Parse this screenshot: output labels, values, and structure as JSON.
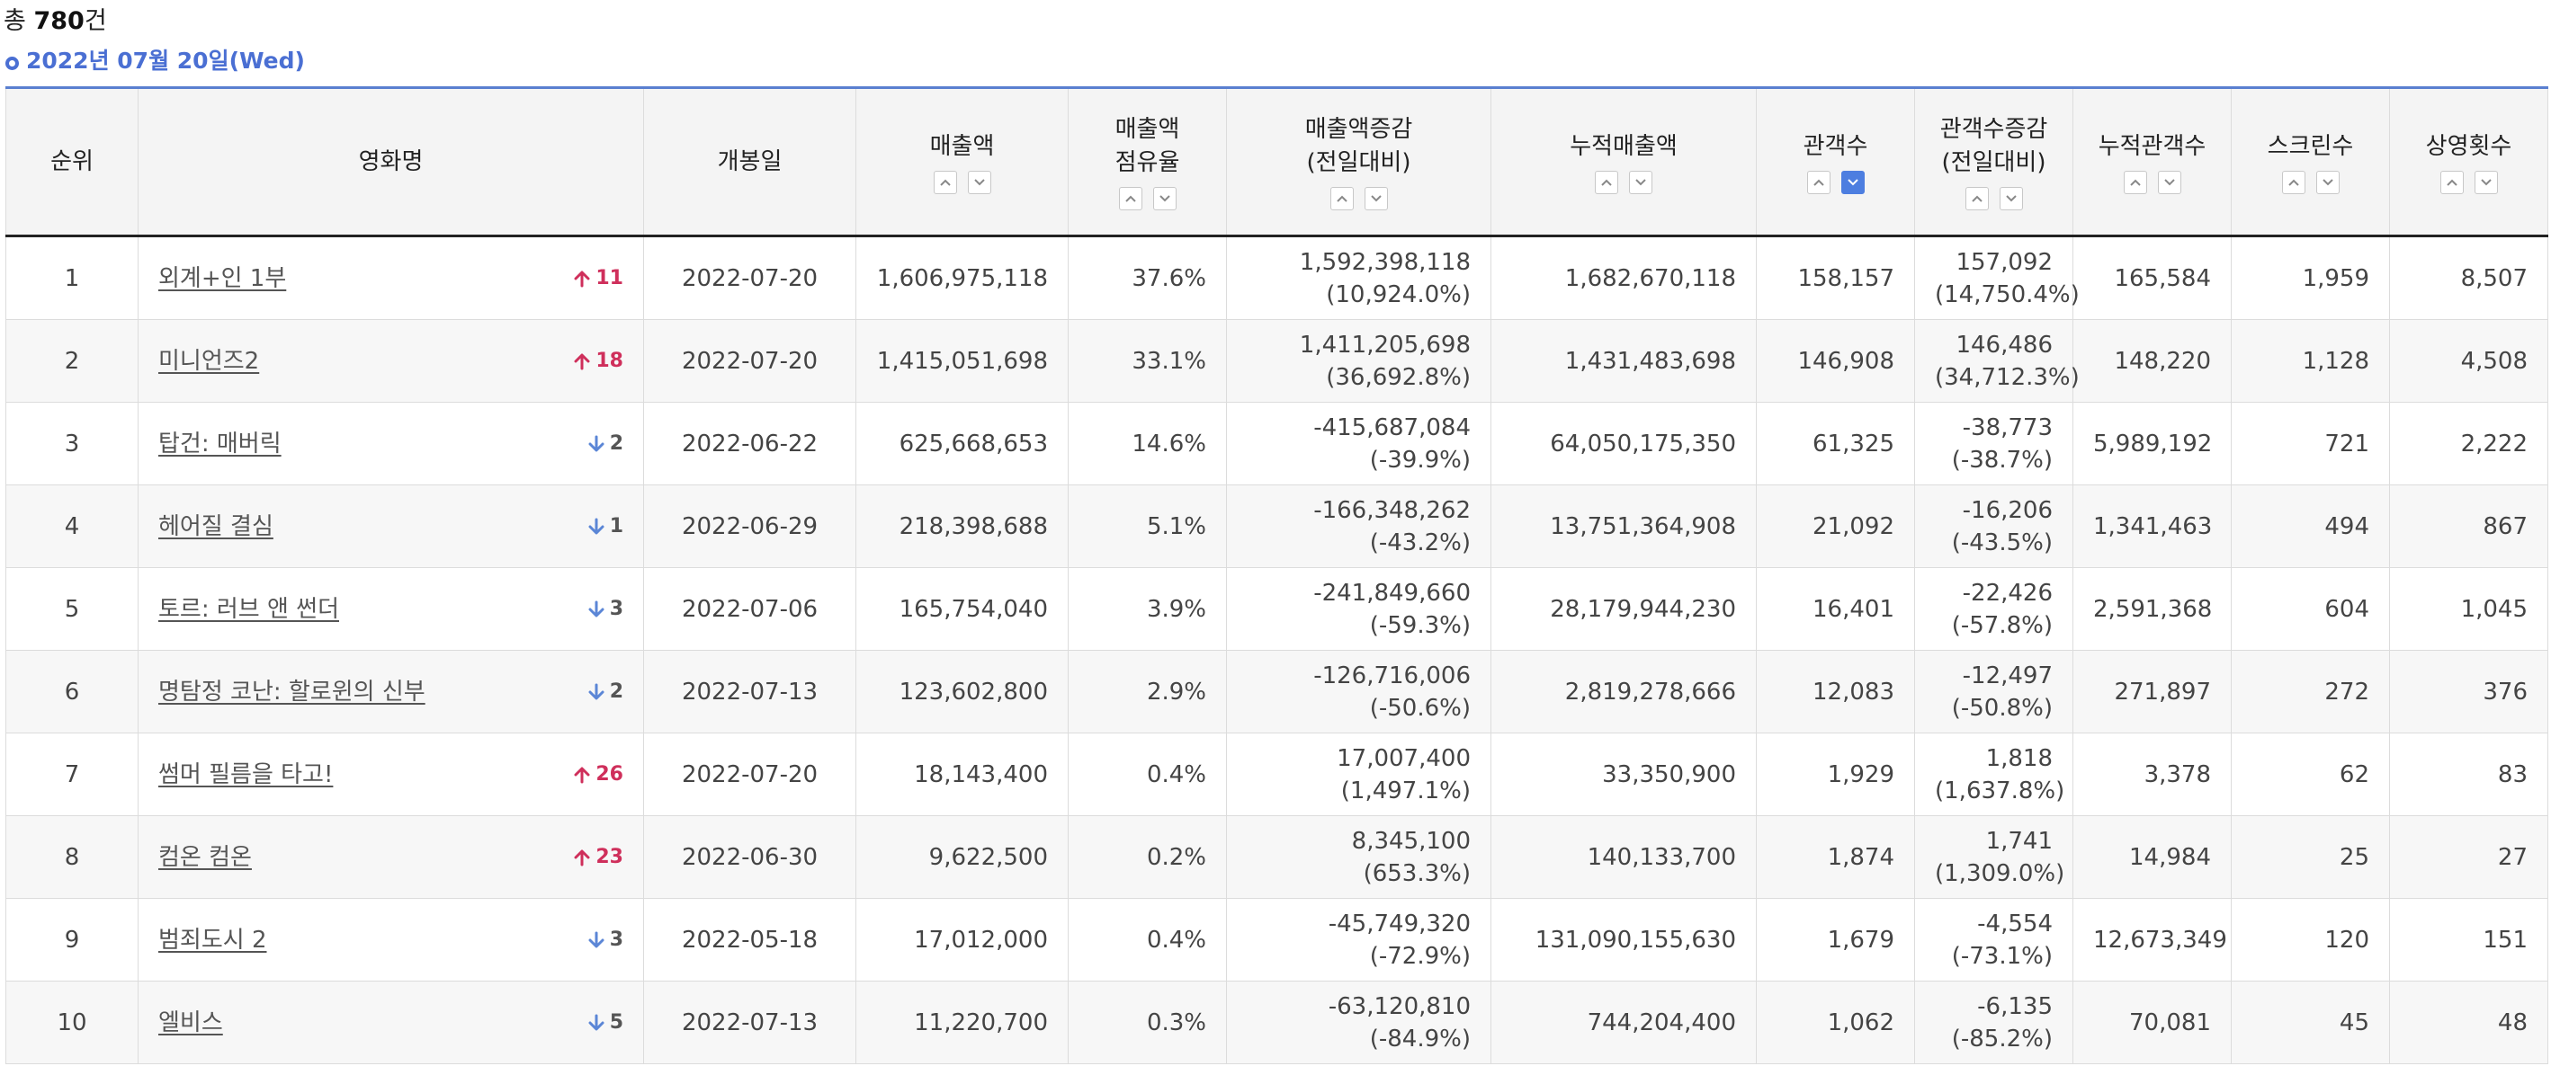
{
  "summary": {
    "prefix": "총 ",
    "count": "780",
    "suffix": "건"
  },
  "date_label": "2022년 07월 20일(Wed)",
  "colors": {
    "accent": "#4a6fd3",
    "up": "#cf2f5b",
    "down_arrow": "#5b86d6",
    "active_sort": "#4d7ee0"
  },
  "columns": [
    {
      "key": "rank",
      "line1": "순위",
      "line2": "",
      "sortable": false
    },
    {
      "key": "title",
      "line1": "영화명",
      "line2": "",
      "sortable": false
    },
    {
      "key": "open",
      "line1": "개봉일",
      "line2": "",
      "sortable": false
    },
    {
      "key": "sales",
      "line1": "매출액",
      "line2": "",
      "sortable": true
    },
    {
      "key": "share",
      "line1": "매출액",
      "line2": "점유율",
      "sortable": true
    },
    {
      "key": "sales_change",
      "line1": "매출액증감",
      "line2": "(전일대비)",
      "sortable": true
    },
    {
      "key": "acc_sales",
      "line1": "누적매출액",
      "line2": "",
      "sortable": true
    },
    {
      "key": "audience",
      "line1": "관객수",
      "line2": "",
      "sortable": true,
      "active_desc": true
    },
    {
      "key": "aud_change",
      "line1": "관객수증감",
      "line2": "(전일대비)",
      "sortable": true
    },
    {
      "key": "acc_audience",
      "line1": "누적관객수",
      "line2": "",
      "sortable": true
    },
    {
      "key": "screens",
      "line1": "스크린수",
      "line2": "",
      "sortable": true
    },
    {
      "key": "shows",
      "line1": "상영횟수",
      "line2": "",
      "sortable": true
    }
  ],
  "rows": [
    {
      "rank": "1",
      "title": "외계+인 1부",
      "rank_dir": "up",
      "rank_change": "11",
      "open": "2022-07-20",
      "sales": "1,606,975,118",
      "share": "37.6%",
      "sales_change": "1,592,398,118",
      "sales_change_pct": "(10,924.0%)",
      "acc_sales": "1,682,670,118",
      "audience": "158,157",
      "aud_change": "157,092",
      "aud_change_pct": "(14,750.4%)",
      "acc_audience": "165,584",
      "screens": "1,959",
      "shows": "8,507"
    },
    {
      "rank": "2",
      "title": "미니언즈2",
      "rank_dir": "up",
      "rank_change": "18",
      "open": "2022-07-20",
      "sales": "1,415,051,698",
      "share": "33.1%",
      "sales_change": "1,411,205,698",
      "sales_change_pct": "(36,692.8%)",
      "acc_sales": "1,431,483,698",
      "audience": "146,908",
      "aud_change": "146,486",
      "aud_change_pct": "(34,712.3%)",
      "acc_audience": "148,220",
      "screens": "1,128",
      "shows": "4,508"
    },
    {
      "rank": "3",
      "title": "탑건: 매버릭",
      "rank_dir": "down",
      "rank_change": "2",
      "open": "2022-06-22",
      "sales": "625,668,653",
      "share": "14.6%",
      "sales_change": "-415,687,084",
      "sales_change_pct": "(-39.9%)",
      "acc_sales": "64,050,175,350",
      "audience": "61,325",
      "aud_change": "-38,773",
      "aud_change_pct": "(-38.7%)",
      "acc_audience": "5,989,192",
      "screens": "721",
      "shows": "2,222"
    },
    {
      "rank": "4",
      "title": "헤어질 결심",
      "rank_dir": "down",
      "rank_change": "1",
      "open": "2022-06-29",
      "sales": "218,398,688",
      "share": "5.1%",
      "sales_change": "-166,348,262",
      "sales_change_pct": "(-43.2%)",
      "acc_sales": "13,751,364,908",
      "audience": "21,092",
      "aud_change": "-16,206",
      "aud_change_pct": "(-43.5%)",
      "acc_audience": "1,341,463",
      "screens": "494",
      "shows": "867"
    },
    {
      "rank": "5",
      "title": "토르: 러브 앤 썬더",
      "rank_dir": "down",
      "rank_change": "3",
      "open": "2022-07-06",
      "sales": "165,754,040",
      "share": "3.9%",
      "sales_change": "-241,849,660",
      "sales_change_pct": "(-59.3%)",
      "acc_sales": "28,179,944,230",
      "audience": "16,401",
      "aud_change": "-22,426",
      "aud_change_pct": "(-57.8%)",
      "acc_audience": "2,591,368",
      "screens": "604",
      "shows": "1,045"
    },
    {
      "rank": "6",
      "title": "명탐정 코난: 할로윈의 신부",
      "rank_dir": "down",
      "rank_change": "2",
      "open": "2022-07-13",
      "sales": "123,602,800",
      "share": "2.9%",
      "sales_change": "-126,716,006",
      "sales_change_pct": "(-50.6%)",
      "acc_sales": "2,819,278,666",
      "audience": "12,083",
      "aud_change": "-12,497",
      "aud_change_pct": "(-50.8%)",
      "acc_audience": "271,897",
      "screens": "272",
      "shows": "376"
    },
    {
      "rank": "7",
      "title": "썸머 필름을 타고!",
      "rank_dir": "up",
      "rank_change": "26",
      "open": "2022-07-20",
      "sales": "18,143,400",
      "share": "0.4%",
      "sales_change": "17,007,400",
      "sales_change_pct": "(1,497.1%)",
      "acc_sales": "33,350,900",
      "audience": "1,929",
      "aud_change": "1,818",
      "aud_change_pct": "(1,637.8%)",
      "acc_audience": "3,378",
      "screens": "62",
      "shows": "83"
    },
    {
      "rank": "8",
      "title": "컴온 컴온",
      "rank_dir": "up",
      "rank_change": "23",
      "open": "2022-06-30",
      "sales": "9,622,500",
      "share": "0.2%",
      "sales_change": "8,345,100",
      "sales_change_pct": "(653.3%)",
      "acc_sales": "140,133,700",
      "audience": "1,874",
      "aud_change": "1,741",
      "aud_change_pct": "(1,309.0%)",
      "acc_audience": "14,984",
      "screens": "25",
      "shows": "27"
    },
    {
      "rank": "9",
      "title": "범죄도시 2",
      "rank_dir": "down",
      "rank_change": "3",
      "open": "2022-05-18",
      "sales": "17,012,000",
      "share": "0.4%",
      "sales_change": "-45,749,320",
      "sales_change_pct": "(-72.9%)",
      "acc_sales": "131,090,155,630",
      "audience": "1,679",
      "aud_change": "-4,554",
      "aud_change_pct": "(-73.1%)",
      "acc_audience": "12,673,349",
      "screens": "120",
      "shows": "151"
    },
    {
      "rank": "10",
      "title": "엘비스",
      "rank_dir": "down",
      "rank_change": "5",
      "open": "2022-07-13",
      "sales": "11,220,700",
      "share": "0.3%",
      "sales_change": "-63,120,810",
      "sales_change_pct": "(-84.9%)",
      "acc_sales": "744,204,400",
      "audience": "1,062",
      "aud_change": "-6,135",
      "aud_change_pct": "(-85.2%)",
      "acc_audience": "70,081",
      "screens": "45",
      "shows": "48"
    }
  ]
}
